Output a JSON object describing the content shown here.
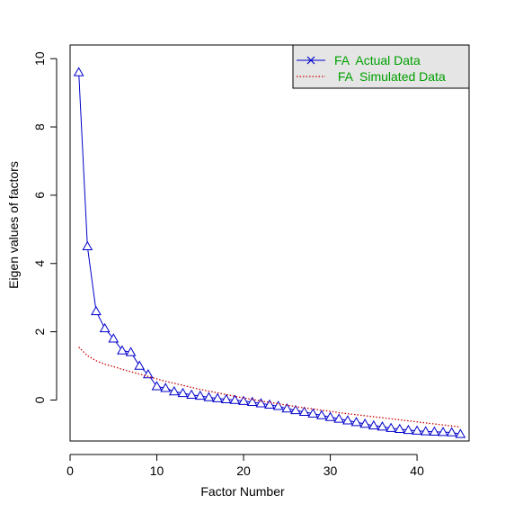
{
  "chart_data": {
    "type": "line",
    "title": "",
    "xlabel": "Factor Number",
    "ylabel": "Eigen values of factors",
    "xlim": [
      0,
      46
    ],
    "ylim": [
      -1.2,
      10.4
    ],
    "x_ticks": [
      0,
      10,
      20,
      30,
      40
    ],
    "y_ticks": [
      0,
      2,
      4,
      6,
      8,
      10
    ],
    "grid": false,
    "legend_position": "top-right",
    "legend": {
      "entries": [
        {
          "label": "FA  Actual Data",
          "color": "#0000cc"
        },
        {
          "label": " FA  Simulated Data",
          "color": "#cc0000"
        }
      ],
      "text_color": "#00a000",
      "background": "#e5e5e5"
    },
    "series": [
      {
        "name": "FA  Actual Data",
        "style": "line-with-triangles",
        "color": "#0000cc",
        "x": [
          1,
          2,
          3,
          4,
          5,
          6,
          7,
          8,
          9,
          10,
          11,
          12,
          13,
          14,
          15,
          16,
          17,
          18,
          19,
          20,
          21,
          22,
          23,
          24,
          25,
          26,
          27,
          28,
          29,
          30,
          31,
          32,
          33,
          34,
          35,
          36,
          37,
          38,
          39,
          40,
          41,
          42,
          43,
          44,
          45
        ],
        "values": [
          9.6,
          4.5,
          2.6,
          2.1,
          1.8,
          1.45,
          1.4,
          1.0,
          0.75,
          0.4,
          0.35,
          0.25,
          0.2,
          0.15,
          0.12,
          0.08,
          0.05,
          0.02,
          0.0,
          -0.03,
          -0.06,
          -0.1,
          -0.14,
          -0.18,
          -0.25,
          -0.3,
          -0.35,
          -0.4,
          -0.45,
          -0.5,
          -0.55,
          -0.6,
          -0.65,
          -0.7,
          -0.75,
          -0.78,
          -0.82,
          -0.85,
          -0.88,
          -0.9,
          -0.92,
          -0.93,
          -0.94,
          -0.95,
          -1.0
        ]
      },
      {
        "name": " FA  Simulated Data",
        "style": "dotted-line",
        "color": "#cc0000",
        "x": [
          1,
          2,
          3,
          4,
          5,
          6,
          7,
          8,
          9,
          10,
          11,
          12,
          13,
          14,
          15,
          16,
          17,
          18,
          19,
          20,
          21,
          22,
          23,
          24,
          25,
          26,
          27,
          28,
          29,
          30,
          31,
          32,
          33,
          34,
          35,
          36,
          37,
          38,
          39,
          40,
          41,
          42,
          43,
          44,
          45
        ],
        "values": [
          1.55,
          1.3,
          1.15,
          1.05,
          0.98,
          0.9,
          0.83,
          0.76,
          0.69,
          0.62,
          0.55,
          0.49,
          0.43,
          0.37,
          0.31,
          0.26,
          0.21,
          0.16,
          0.11,
          0.06,
          0.02,
          -0.03,
          -0.07,
          -0.11,
          -0.15,
          -0.19,
          -0.23,
          -0.26,
          -0.3,
          -0.33,
          -0.37,
          -0.4,
          -0.43,
          -0.46,
          -0.49,
          -0.52,
          -0.55,
          -0.58,
          -0.61,
          -0.64,
          -0.67,
          -0.7,
          -0.73,
          -0.76,
          -0.79
        ]
      }
    ]
  }
}
